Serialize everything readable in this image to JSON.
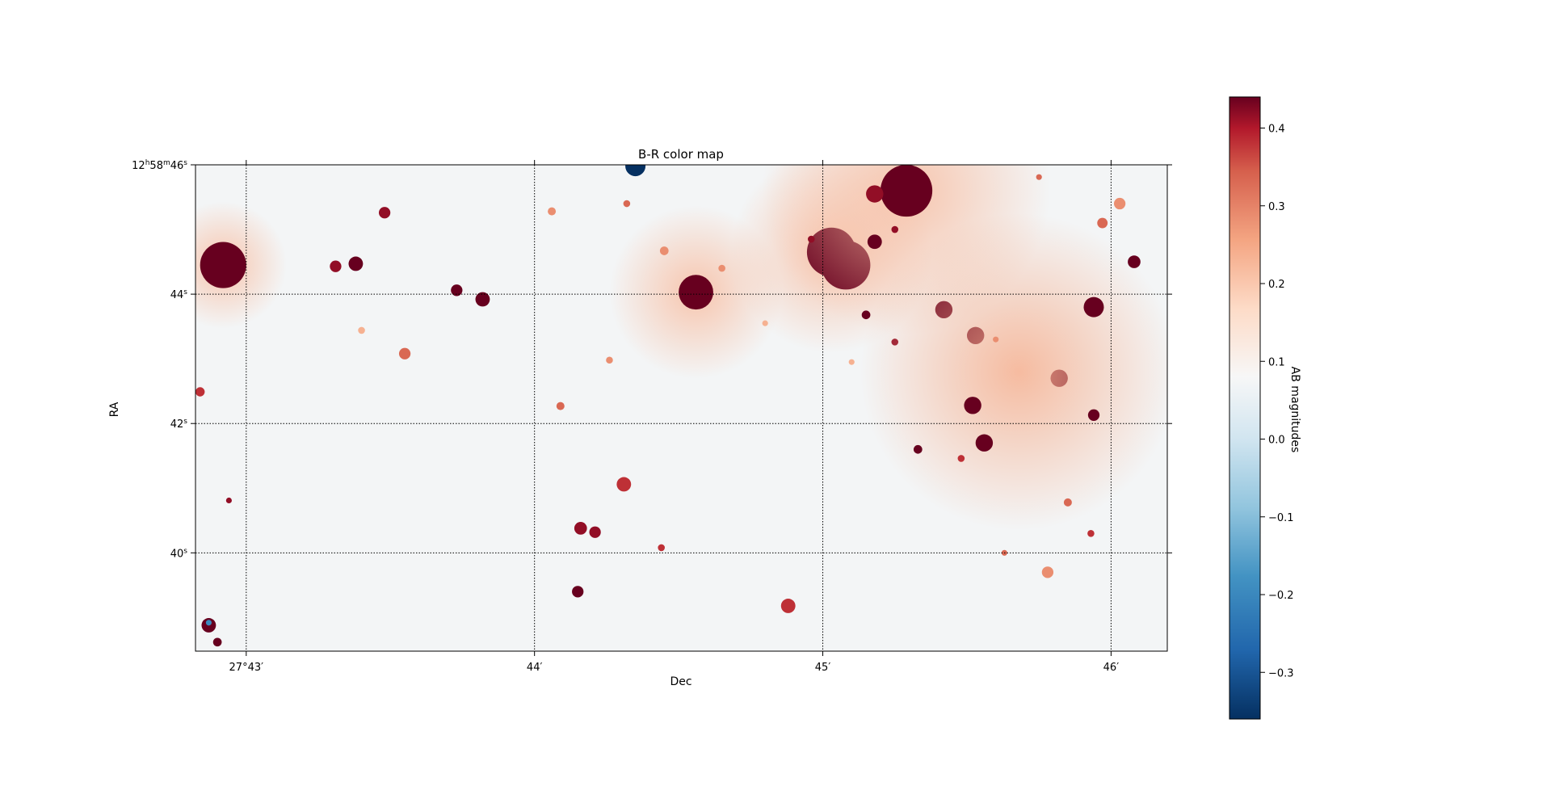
{
  "chart_data": {
    "type": "heatmap",
    "title": "B-R color map",
    "xlabel": "Dec",
    "ylabel": "RA",
    "x_ticks": [
      {
        "arcmin": 43,
        "label": "27°43′"
      },
      {
        "arcmin": 44,
        "label": "44′"
      },
      {
        "arcmin": 45,
        "label": "45′"
      },
      {
        "arcmin": 46,
        "label": "46′"
      }
    ],
    "xlim_arcmin": [
      42.824,
      46.195
    ],
    "y_ticks": [
      {
        "sec": 46,
        "label_main": "12",
        "sup_h": "h",
        "label_mid": "58",
        "sup_m": "m",
        "label_sec": "46",
        "sup_s": "s"
      },
      {
        "sec": 44,
        "label_sec": "44",
        "sup_s": "s"
      },
      {
        "sec": 42,
        "label_sec": "42",
        "sup_s": "s"
      },
      {
        "sec": 40,
        "label_sec": "40",
        "sup_s": "s"
      }
    ],
    "ylim_sec": [
      38.48,
      46.0
    ],
    "grid": true,
    "colormap": "RdBu_r",
    "colorbar": {
      "label": "AB magnitudes",
      "vmin": -0.36,
      "vmax": 0.44,
      "ticks": [
        {
          "v": 0.4,
          "label": "0.4"
        },
        {
          "v": 0.3,
          "label": "0.3"
        },
        {
          "v": 0.2,
          "label": "0.2"
        },
        {
          "v": 0.1,
          "label": "0.1"
        },
        {
          "v": 0.0,
          "label": "0.0"
        },
        {
          "v": -0.1,
          "label": "−0.1"
        },
        {
          "v": -0.2,
          "label": "−0.2"
        },
        {
          "v": -0.3,
          "label": "−0.3"
        }
      ]
    },
    "sources": [
      {
        "x": 42.92,
        "y": 44.45,
        "r": 0.08,
        "v": 0.45,
        "halo": 0.22
      },
      {
        "x": 43.48,
        "y": 45.26,
        "r": 0.02,
        "v": 0.4
      },
      {
        "x": 43.38,
        "y": 44.47,
        "r": 0.025,
        "v": 0.45
      },
      {
        "x": 43.31,
        "y": 44.43,
        "r": 0.02,
        "v": 0.4
      },
      {
        "x": 43.73,
        "y": 44.06,
        "r": 0.02,
        "v": 0.45
      },
      {
        "x": 43.82,
        "y": 43.92,
        "r": 0.025,
        "v": 0.45
      },
      {
        "x": 43.55,
        "y": 43.08,
        "r": 0.02,
        "v": 0.3
      },
      {
        "x": 43.4,
        "y": 43.44,
        "r": 0.012,
        "v": 0.2
      },
      {
        "x": 44.56,
        "y": 44.03,
        "r": 0.06,
        "v": 0.45,
        "halo": 0.3
      },
      {
        "x": 44.32,
        "y": 45.4,
        "r": 0.012,
        "v": 0.3
      },
      {
        "x": 44.06,
        "y": 45.28,
        "r": 0.014,
        "v": 0.25
      },
      {
        "x": 44.65,
        "y": 44.4,
        "r": 0.012,
        "v": 0.25
      },
      {
        "x": 44.45,
        "y": 44.67,
        "r": 0.015,
        "v": 0.25
      },
      {
        "x": 44.09,
        "y": 42.27,
        "r": 0.014,
        "v": 0.3
      },
      {
        "x": 44.26,
        "y": 42.98,
        "r": 0.012,
        "v": 0.25
      },
      {
        "x": 44.31,
        "y": 41.06,
        "r": 0.025,
        "v": 0.35
      },
      {
        "x": 44.16,
        "y": 40.38,
        "r": 0.022,
        "v": 0.4
      },
      {
        "x": 44.21,
        "y": 40.32,
        "r": 0.02,
        "v": 0.4
      },
      {
        "x": 44.15,
        "y": 39.4,
        "r": 0.02,
        "v": 0.45
      },
      {
        "x": 44.44,
        "y": 40.08,
        "r": 0.012,
        "v": 0.35
      },
      {
        "x": 44.88,
        "y": 39.18,
        "r": 0.025,
        "v": 0.35
      },
      {
        "x": 45.03,
        "y": 44.65,
        "r": 0.085,
        "v": 0.45,
        "halo": 0.35
      },
      {
        "x": 45.08,
        "y": 44.45,
        "r": 0.085,
        "v": 0.45
      },
      {
        "x": 45.29,
        "y": 45.6,
        "r": 0.09,
        "v": 0.45,
        "halo": 0.5
      },
      {
        "x": 45.18,
        "y": 45.55,
        "r": 0.03,
        "v": 0.4
      },
      {
        "x": 45.18,
        "y": 44.81,
        "r": 0.025,
        "v": 0.45
      },
      {
        "x": 45.25,
        "y": 45.0,
        "r": 0.012,
        "v": 0.4
      },
      {
        "x": 44.96,
        "y": 44.85,
        "r": 0.012,
        "v": 0.4
      },
      {
        "x": 45.15,
        "y": 43.68,
        "r": 0.015,
        "v": 0.45
      },
      {
        "x": 45.25,
        "y": 43.26,
        "r": 0.012,
        "v": 0.4
      },
      {
        "x": 45.42,
        "y": 43.76,
        "r": 0.03,
        "v": 0.45
      },
      {
        "x": 45.53,
        "y": 43.36,
        "r": 0.03,
        "v": 0.45
      },
      {
        "x": 45.82,
        "y": 42.7,
        "r": 0.03,
        "v": 0.45
      },
      {
        "x": 45.68,
        "y": 42.8,
        "r": 0.0,
        "v": 0.0,
        "halo": 0.55,
        "hv": 0.2
      },
      {
        "x": 45.52,
        "y": 42.28,
        "r": 0.03,
        "v": 0.45
      },
      {
        "x": 45.56,
        "y": 41.7,
        "r": 0.03,
        "v": 0.45
      },
      {
        "x": 45.33,
        "y": 41.6,
        "r": 0.015,
        "v": 0.45
      },
      {
        "x": 45.48,
        "y": 41.46,
        "r": 0.012,
        "v": 0.35
      },
      {
        "x": 45.94,
        "y": 43.8,
        "r": 0.035,
        "v": 0.45
      },
      {
        "x": 45.94,
        "y": 42.13,
        "r": 0.02,
        "v": 0.45
      },
      {
        "x": 45.85,
        "y": 40.78,
        "r": 0.014,
        "v": 0.3
      },
      {
        "x": 45.93,
        "y": 40.3,
        "r": 0.012,
        "v": 0.35
      },
      {
        "x": 45.78,
        "y": 39.7,
        "r": 0.02,
        "v": 0.25
      },
      {
        "x": 45.63,
        "y": 40.0,
        "r": 0.01,
        "v": 0.3
      },
      {
        "x": 45.97,
        "y": 45.1,
        "r": 0.018,
        "v": 0.3
      },
      {
        "x": 46.03,
        "y": 45.4,
        "r": 0.02,
        "v": 0.25
      },
      {
        "x": 46.08,
        "y": 44.5,
        "r": 0.022,
        "v": 0.45
      },
      {
        "x": 44.35,
        "y": 45.98,
        "r": 0.035,
        "v": -0.36
      },
      {
        "x": 42.87,
        "y": 38.88,
        "r": 0.025,
        "v": 0.45
      },
      {
        "x": 42.87,
        "y": 38.92,
        "r": 0.01,
        "v": -0.2
      },
      {
        "x": 42.9,
        "y": 38.62,
        "r": 0.015,
        "v": 0.45
      },
      {
        "x": 42.84,
        "y": 42.49,
        "r": 0.016,
        "v": 0.35
      },
      {
        "x": 42.94,
        "y": 40.81,
        "r": 0.01,
        "v": 0.4
      },
      {
        "x": 45.75,
        "y": 45.81,
        "r": 0.01,
        "v": 0.3
      },
      {
        "x": 45.6,
        "y": 43.3,
        "r": 0.01,
        "v": 0.25
      },
      {
        "x": 45.1,
        "y": 42.95,
        "r": 0.01,
        "v": 0.2
      },
      {
        "x": 44.8,
        "y": 43.55,
        "r": 0.01,
        "v": 0.2
      }
    ]
  }
}
